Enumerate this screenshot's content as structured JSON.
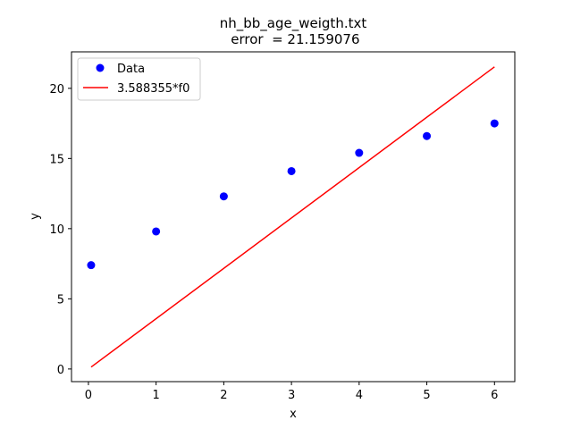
{
  "chart_data": {
    "type": "scatter",
    "title": "nh_bb_age_weigth.txt",
    "subtitle": " error  = 21.159076",
    "xlabel": "x",
    "ylabel": "y",
    "xlim": [
      -0.25,
      6.3
    ],
    "ylim": [
      -0.9,
      22.6
    ],
    "xticks": [
      0,
      1,
      2,
      3,
      4,
      5,
      6
    ],
    "yticks": [
      0,
      5,
      10,
      15,
      20
    ],
    "grid": false,
    "legend_position": "upper-left",
    "series": [
      {
        "name": "Data",
        "kind": "scatter",
        "color": "#0000ff",
        "x": [
          0.04,
          1,
          2,
          3,
          4,
          5,
          6
        ],
        "y": [
          7.4,
          9.8,
          12.3,
          14.1,
          15.4,
          16.6,
          17.5
        ]
      },
      {
        "name": "3.588355*f0",
        "kind": "line",
        "color": "#ff0000",
        "x": [
          0.04,
          6
        ],
        "y": [
          0.14,
          21.53
        ]
      }
    ]
  }
}
